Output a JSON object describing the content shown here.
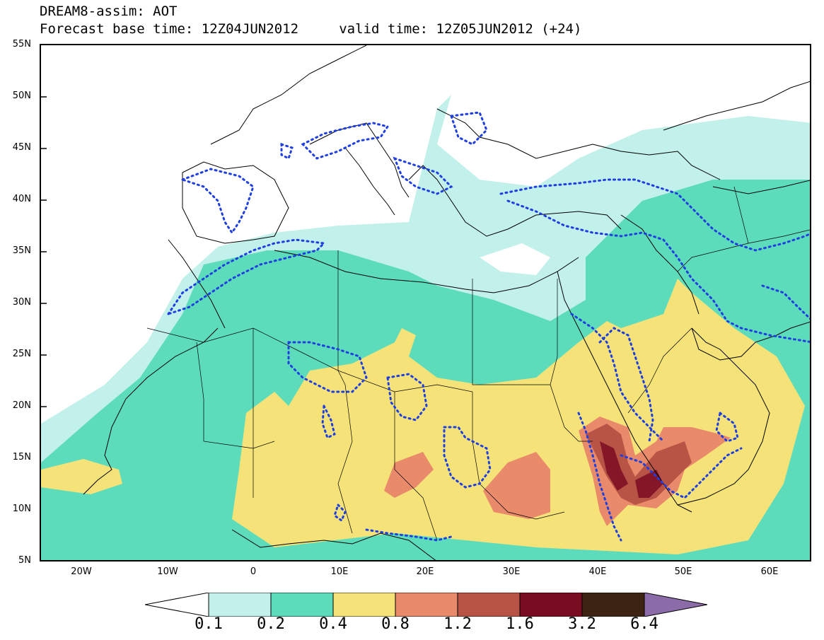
{
  "header": {
    "title": "DREAM8-assim: AOT",
    "subtitle": "Forecast base time: 12Z04JUN2012     valid time: 12Z05JUN2012 (+24)"
  },
  "axes": {
    "lat_labels": [
      "55N",
      "50N",
      "45N",
      "40N",
      "35N",
      "30N",
      "25N",
      "20N",
      "15N",
      "10N",
      "5N"
    ],
    "lon_labels": [
      "20W",
      "10W",
      "0",
      "10E",
      "20E",
      "30E",
      "40E",
      "50E",
      "60E"
    ],
    "lat_range": [
      5,
      55
    ],
    "lon_range": [
      -25,
      65
    ]
  },
  "legend": {
    "labels": [
      "0.1",
      "0.2",
      "0.4",
      "0.8",
      "1.2",
      "1.6",
      "3.2",
      "6.4"
    ],
    "colors": [
      "#ffffff",
      "#c2f0ea",
      "#5ddcbc",
      "#f5e37a",
      "#e98a6a",
      "#b85445",
      "#7a0c22",
      "#3c2313",
      "#8b6ba8"
    ]
  },
  "overlay": {
    "contour_color": "#1f3fe0",
    "coastline_color": "#000000"
  }
}
